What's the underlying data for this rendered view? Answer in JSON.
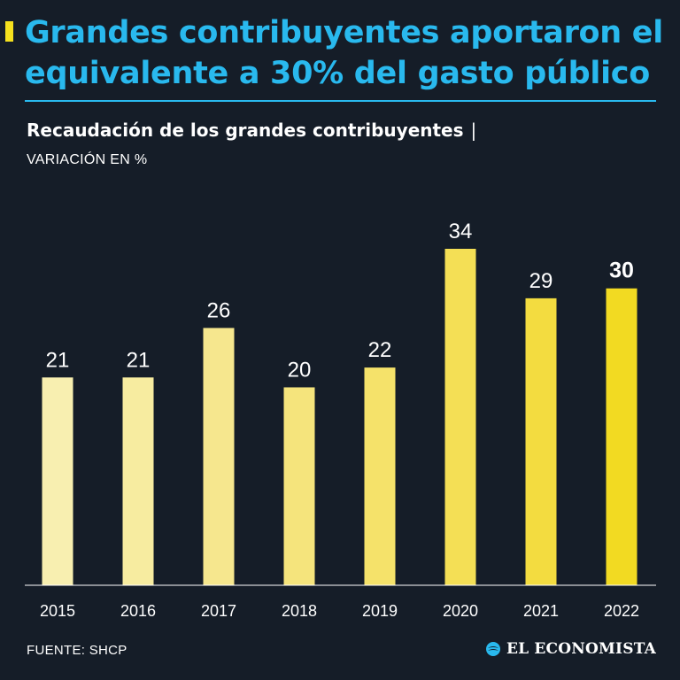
{
  "header": {
    "headline": "Grandes contribuyentes aportaron el equivalente a 30% del gasto público",
    "subtitle": "Recaudación de los grandes contribuyentes",
    "subtitle_separator": "|",
    "units": "VARIACIÓN EN %"
  },
  "footer": {
    "source": "FUENTE: SHCP",
    "brand": "EL ECONOMISTA"
  },
  "colors": {
    "background": "#151d28",
    "headline": "#29b9ee",
    "accent": "#f5e11e"
  },
  "chart_data": {
    "type": "bar",
    "title": "Recaudación de los grandes contribuyentes",
    "ylabel": "VARIACIÓN EN %",
    "xlabel": "",
    "categories": [
      "2015",
      "2016",
      "2017",
      "2018",
      "2019",
      "2020",
      "2021",
      "2022"
    ],
    "values": [
      21,
      21,
      26,
      20,
      22,
      34,
      29,
      30
    ],
    "labels": [
      "21",
      "21",
      "26",
      "20",
      "22",
      "34",
      "29",
      "30"
    ],
    "highlight_index": 7,
    "bar_colors": [
      "#f8efb0",
      "#f7eca0",
      "#f6e78e",
      "#f5e47c",
      "#f5e26a",
      "#f4df55",
      "#f3dc40",
      "#f2da22"
    ],
    "ylim": [
      0,
      34
    ],
    "grid": false,
    "legend": "none"
  }
}
